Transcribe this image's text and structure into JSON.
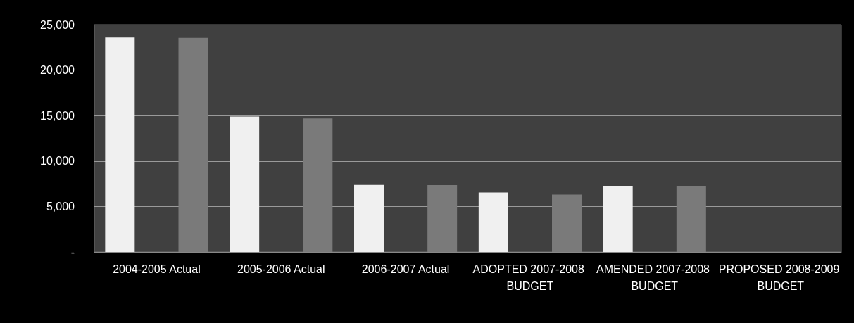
{
  "chart_data": {
    "type": "bar",
    "categories": [
      "2004-2005 Actual",
      "2005-2006 Actual",
      "2006-2007 Actual",
      "ADOPTED 2007-2008 BUDGET",
      "AMENDED 2007-2008 BUDGET",
      "PROPOSED 2008-2009 BUDGET"
    ],
    "series": [
      {
        "color": "#f0f0f0",
        "values": [
          23580,
          14890,
          7380,
          6540,
          7210,
          0
        ]
      },
      {
        "color": "#555555",
        "values": [
          100,
          0,
          0,
          0,
          0,
          0
        ]
      },
      {
        "color": "#7a7a7a",
        "values": [
          23550,
          14690,
          7350,
          6300,
          7200,
          0
        ]
      }
    ],
    "ylim": [
      0,
      25000
    ],
    "yticks": [
      {
        "value": 0,
        "label": "-"
      },
      {
        "value": 5000,
        "label": "5,000"
      },
      {
        "value": 10000,
        "label": "10,000"
      },
      {
        "value": 15000,
        "label": "15,000"
      },
      {
        "value": 20000,
        "label": "20,000"
      },
      {
        "value": 25000,
        "label": "25,000"
      }
    ],
    "grid": "y"
  }
}
